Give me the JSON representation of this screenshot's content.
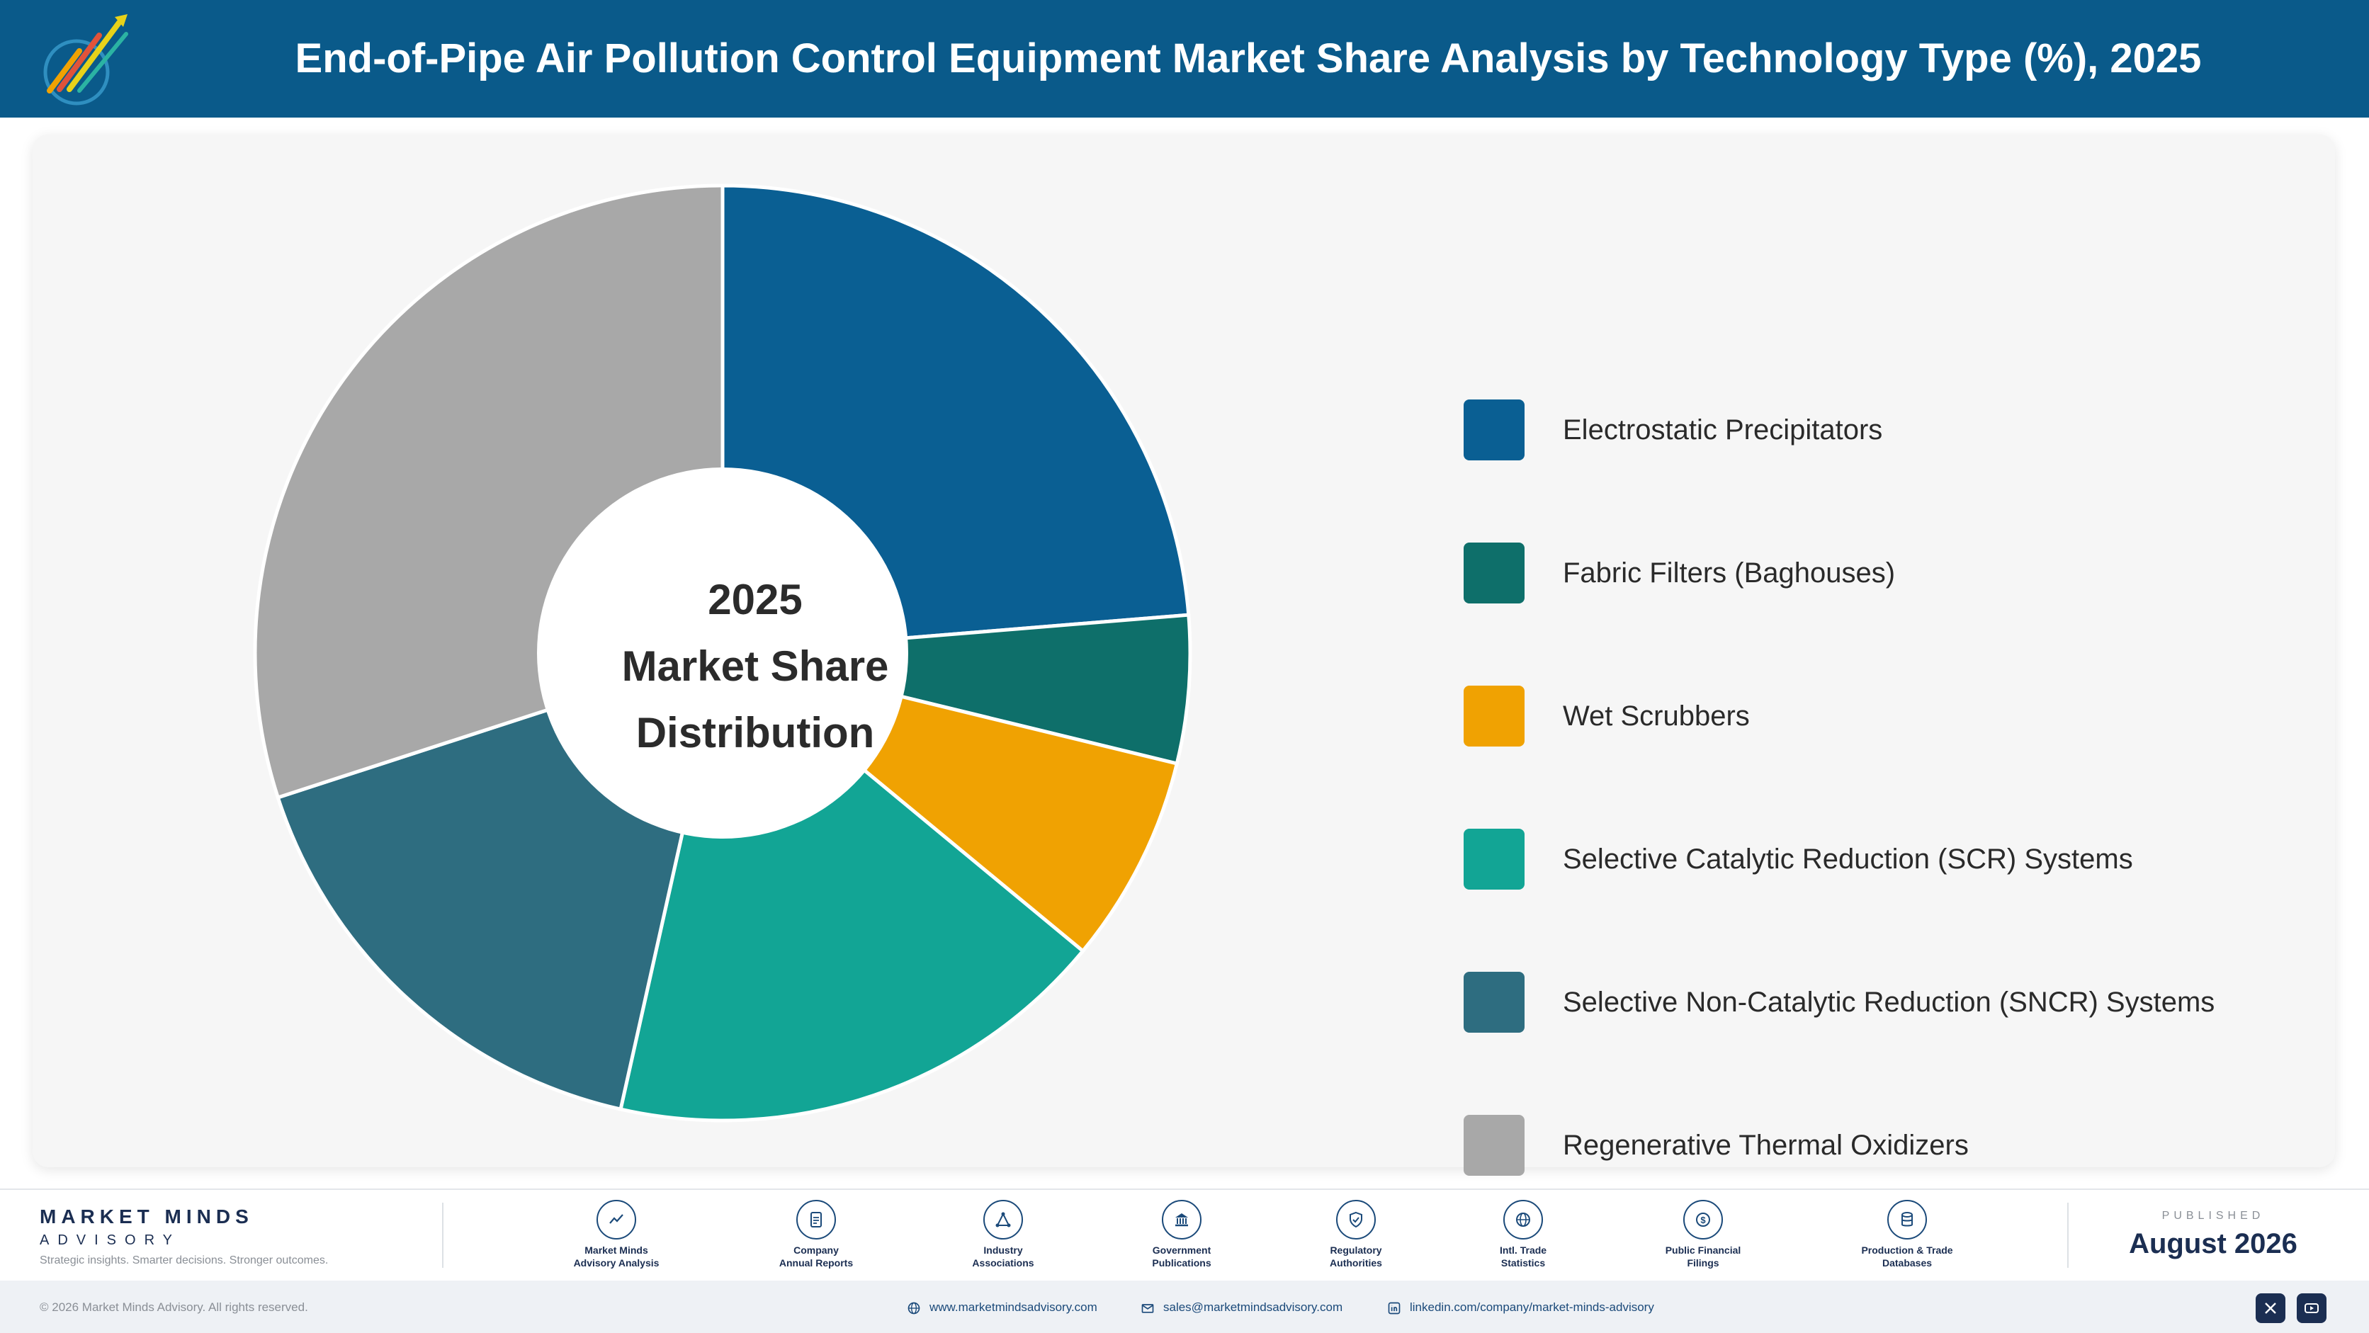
{
  "header": {
    "title": "End-of-Pipe Air Pollution Control Equipment Market Share Analysis by Technology Type (%), 2025",
    "logo_icon": "market-minds-logo-icon"
  },
  "center_label": [
    "2025",
    "Market Share",
    "Distribution"
  ],
  "chart_data": {
    "type": "pie",
    "title": "End-of-Pipe Air Pollution Control Equipment Market Share Analysis by Technology Type (%), 2025",
    "categories": [
      "Electrostatic Precipitators",
      "Fabric Filters (Baghouses)",
      "Wet Scrubbers",
      "Selective Catalytic Reduction (SCR) Systems",
      "Selective Non-Catalytic Reduction (SNCR) Systems",
      "Regenerative Thermal Oxidizers"
    ],
    "values": [
      23.7,
      5.1,
      7.2,
      17.5,
      16.5,
      30.0
    ],
    "colors": [
      "#0a5f93",
      "#0e6f6a",
      "#f0a202",
      "#12a595",
      "#2e6d80",
      "#a8a8a8"
    ],
    "donut": true,
    "start_angle_deg": 0,
    "legend_position": "right"
  },
  "footer": {
    "brand_name": "MARKET MINDS",
    "brand_sub": "ADVISORY",
    "brand_tagline": "Strategic insights. Smarter decisions. Stronger outcomes.",
    "sources": [
      {
        "line1": "Market Minds",
        "line2": "Advisory Analysis",
        "icon": "trend-chart-icon"
      },
      {
        "line1": "Company",
        "line2": "Annual Reports",
        "icon": "document-icon"
      },
      {
        "line1": "Industry",
        "line2": "Associations",
        "icon": "network-icon"
      },
      {
        "line1": "Government",
        "line2": "Publications",
        "icon": "government-building-icon"
      },
      {
        "line1": "Regulatory",
        "line2": "Authorities",
        "icon": "shield-check-icon"
      },
      {
        "line1": "Intl. Trade",
        "line2": "Statistics",
        "icon": "globe-icon"
      },
      {
        "line1": "Public Financial",
        "line2": "Filings",
        "icon": "dollar-coin-icon"
      },
      {
        "line1": "Production & Trade",
        "line2": "Databases",
        "icon": "database-icon"
      }
    ],
    "published_label": "PUBLISHED",
    "published_date": "August 2026",
    "copyright": "© 2026 Market Minds Advisory. All rights reserved.",
    "website": "www.marketmindsadvisory.com",
    "email": "sales@marketmindsadvisory.com",
    "linkedin": "linkedin.com/company/market-minds-advisory"
  }
}
